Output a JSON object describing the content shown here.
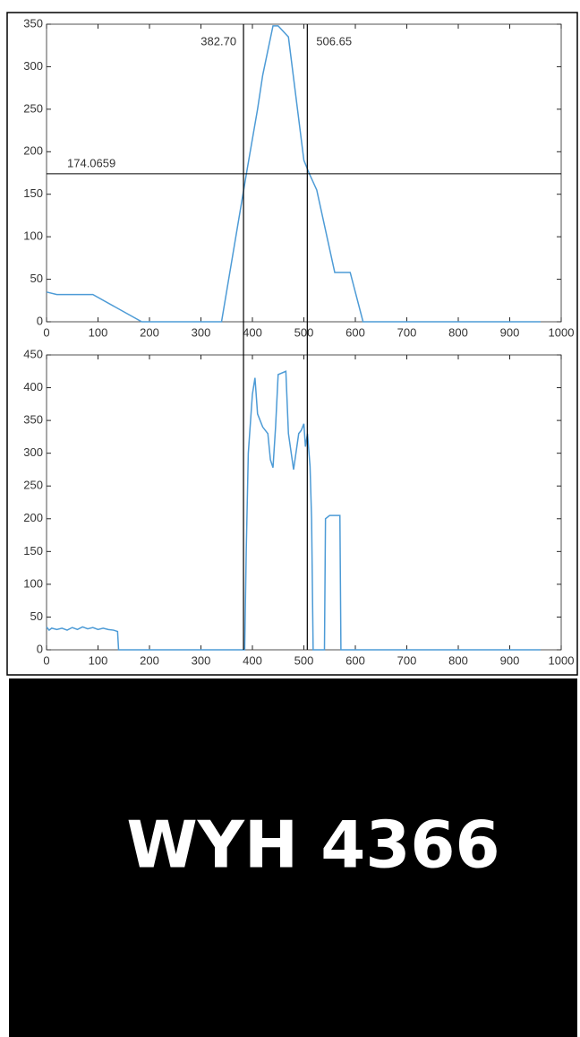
{
  "chart_data": [
    {
      "type": "line",
      "x": [
        0,
        20,
        90,
        185,
        340,
        390,
        410,
        420,
        440,
        450,
        470,
        500,
        510,
        525,
        560,
        590,
        615,
        960
      ],
      "series": [
        {
          "color": "#4d9bd6",
          "values": [
            35,
            32,
            32,
            0,
            0,
            180,
            250,
            290,
            348,
            348,
            335,
            190,
            175,
            155,
            58,
            58,
            0,
            0
          ]
        }
      ],
      "xlim": [
        0,
        1000
      ],
      "xticks": [
        0,
        100,
        200,
        300,
        400,
        500,
        600,
        700,
        800,
        900,
        1000
      ],
      "ylim": [
        0,
        350
      ],
      "yticks": [
        0,
        50,
        100,
        150,
        200,
        250,
        300,
        350
      ],
      "vlines": [
        {
          "value": 382.7,
          "label": "382.70"
        },
        506.65
      ],
      "hline": 174.0659
    },
    {
      "type": "line",
      "x": [
        0,
        5,
        10,
        20,
        30,
        40,
        50,
        60,
        70,
        80,
        90,
        100,
        110,
        120,
        130,
        138,
        140,
        385,
        388,
        392,
        400,
        405,
        410,
        420,
        430,
        435,
        440,
        445,
        450,
        465,
        470,
        480,
        490,
        495,
        500,
        503,
        507,
        512,
        515,
        518,
        540,
        542,
        550,
        570,
        572,
        960
      ],
      "series": [
        {
          "color": "#4d9bd6",
          "values": [
            35,
            30,
            33,
            31,
            33,
            30,
            34,
            31,
            35,
            32,
            34,
            31,
            33,
            31,
            30,
            28,
            0,
            0,
            150,
            300,
            390,
            415,
            360,
            340,
            330,
            290,
            278,
            340,
            420,
            425,
            330,
            275,
            330,
            335,
            345,
            310,
            330,
            280,
            200,
            0,
            0,
            200,
            205,
            205,
            0,
            0
          ]
        }
      ],
      "xlim": [
        0,
        1000
      ],
      "xticks": [
        0,
        100,
        200,
        300,
        400,
        500,
        600,
        700,
        800,
        900,
        1000
      ],
      "ylim": [
        0,
        450
      ],
      "yticks": [
        0,
        50,
        100,
        150,
        200,
        250,
        300,
        350,
        400,
        450
      ]
    }
  ],
  "image": {
    "text": "WYH 4366"
  }
}
